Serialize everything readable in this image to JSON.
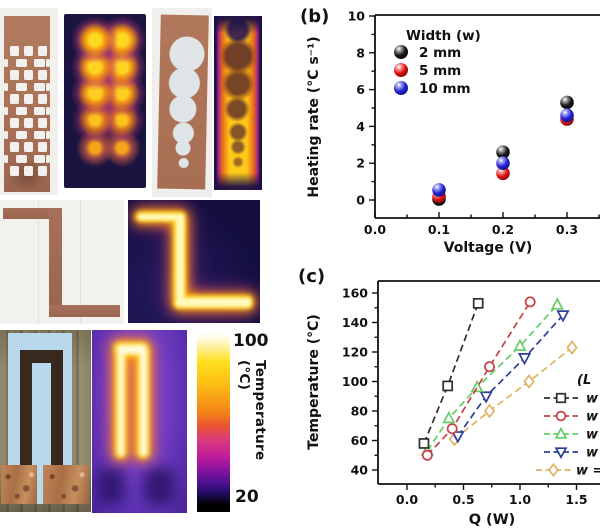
{
  "panels": {
    "b_label": "(b)",
    "c_label": "(c)"
  },
  "colorbar": {
    "max": "100",
    "min": "20",
    "title": "Temperature (°C)"
  },
  "chart_data": [
    {
      "id": "b",
      "type": "scatter",
      "xlabel": "Voltage (V)",
      "ylabel": "Heating rate (°C s⁻¹)",
      "xlim": [
        0.0,
        0.35
      ],
      "ylim": [
        -1,
        10
      ],
      "x_ticks": [
        "0.0",
        "0.1",
        "0.2",
        "0.3"
      ],
      "y_ticks": [
        "0",
        "2",
        "4",
        "6",
        "8",
        "10"
      ],
      "grid": false,
      "legend": {
        "title": "Width (w)",
        "position": "top-left-inside"
      },
      "series": [
        {
          "label": "2 mm",
          "marker": "sphere",
          "color": "#151515",
          "x": [
            0.1,
            0.2,
            0.3
          ],
          "y": [
            0.05,
            2.6,
            5.3
          ]
        },
        {
          "label": "5 mm",
          "marker": "sphere",
          "color": "#e11010",
          "x": [
            0.1,
            0.2,
            0.3
          ],
          "y": [
            0.2,
            1.45,
            4.4
          ]
        },
        {
          "label": "10 mm",
          "marker": "sphere",
          "color": "#2121d6",
          "x": [
            0.1,
            0.2,
            0.3
          ],
          "y": [
            0.55,
            2.0,
            4.6
          ]
        }
      ]
    },
    {
      "id": "c",
      "type": "scatter",
      "line_style": "dashed",
      "xlabel": "Q (W)",
      "ylabel": "Temperature (°C)",
      "xlim": [
        -0.26,
        1.71
      ],
      "ylim": [
        30,
        168
      ],
      "x_ticks": [
        "0.0",
        "0.5",
        "1.0",
        "1.5"
      ],
      "y_ticks": [
        "40",
        "60",
        "80",
        "100",
        "120",
        "140",
        "160"
      ],
      "grid": false,
      "legend": {
        "title": "(L",
        "position": "lower-right-inside",
        "truncated_at_edge": true
      },
      "series": [
        {
          "label": "w",
          "marker": "square",
          "color": "#2e2e2e",
          "x": [
            0.15,
            0.36,
            0.63
          ],
          "y": [
            58,
            97,
            153
          ]
        },
        {
          "label": "w",
          "marker": "circle",
          "color": "#c84048",
          "x": [
            0.18,
            0.4,
            0.73,
            1.09
          ],
          "y": [
            50,
            68,
            110,
            154
          ]
        },
        {
          "label": "w",
          "marker": "triangle-up",
          "color": "#66cc66",
          "x": [
            0.18,
            0.37,
            0.62,
            1.0,
            1.33
          ],
          "y": [
            53,
            75,
            96,
            124,
            152
          ]
        },
        {
          "label": "w",
          "marker": "triangle-down",
          "color": "#2c3e96",
          "x": [
            0.45,
            0.7,
            1.04,
            1.38
          ],
          "y": [
            63,
            90,
            116,
            145
          ]
        },
        {
          "label": "w =",
          "marker": "diamond",
          "color": "#e0b264",
          "x": [
            0.42,
            0.73,
            1.08,
            1.46
          ],
          "y": [
            61,
            80,
            100,
            123
          ]
        }
      ]
    }
  ]
}
